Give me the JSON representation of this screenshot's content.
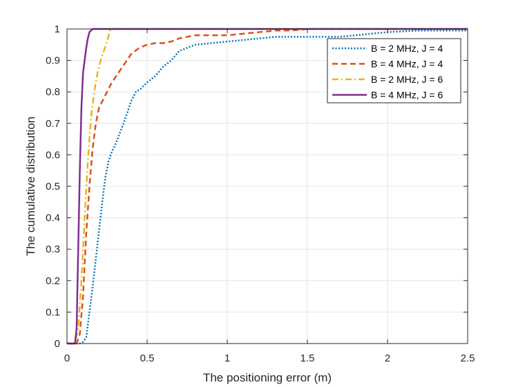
{
  "chart_data": {
    "type": "line",
    "title": "",
    "xlabel": "The positioning error (m)",
    "ylabel": "The cumulative distribution",
    "xlim": [
      0,
      2.5
    ],
    "ylim": [
      0,
      1
    ],
    "grid": true,
    "legend_position": "top-right",
    "x_ticks": [
      "0",
      "0.5",
      "1",
      "1.5",
      "2",
      "2.5"
    ],
    "y_ticks": [
      "0",
      "0.1",
      "0.2",
      "0.3",
      "0.4",
      "0.5",
      "0.6",
      "0.7",
      "0.8",
      "0.9",
      "1"
    ],
    "series": [
      {
        "name": "B = 2 MHz, J = 4",
        "color": "#0072BD",
        "style": "dotted",
        "x": [
          0,
          0.08,
          0.1,
          0.12,
          0.14,
          0.16,
          0.18,
          0.2,
          0.22,
          0.24,
          0.26,
          0.28,
          0.3,
          0.33,
          0.36,
          0.4,
          0.43,
          0.46,
          0.5,
          0.55,
          0.6,
          0.65,
          0.7,
          0.75,
          0.8,
          0.9,
          1.0,
          1.1,
          1.2,
          1.3,
          1.5,
          1.6,
          1.7,
          1.8,
          1.9,
          2.0,
          2.2,
          2.3,
          2.5
        ],
        "y": [
          0,
          0,
          0.005,
          0.02,
          0.1,
          0.18,
          0.27,
          0.36,
          0.45,
          0.53,
          0.58,
          0.61,
          0.63,
          0.67,
          0.71,
          0.77,
          0.8,
          0.81,
          0.83,
          0.85,
          0.88,
          0.9,
          0.93,
          0.94,
          0.95,
          0.955,
          0.96,
          0.965,
          0.97,
          0.975,
          0.975,
          0.975,
          0.975,
          0.98,
          0.985,
          0.99,
          0.995,
          0.995,
          0.995
        ]
      },
      {
        "name": "B = 4 MHz, J = 4",
        "color": "#D95319",
        "style": "dashed",
        "x": [
          0,
          0.06,
          0.08,
          0.1,
          0.12,
          0.14,
          0.16,
          0.18,
          0.2,
          0.22,
          0.25,
          0.28,
          0.32,
          0.36,
          0.4,
          0.45,
          0.5,
          0.55,
          0.6,
          0.65,
          0.7,
          0.8,
          0.9,
          1.0,
          1.1,
          1.2,
          1.3,
          1.4,
          1.5,
          1.6,
          2.0,
          2.5
        ],
        "y": [
          0,
          0,
          0.03,
          0.15,
          0.35,
          0.5,
          0.62,
          0.7,
          0.75,
          0.77,
          0.8,
          0.83,
          0.86,
          0.89,
          0.92,
          0.94,
          0.95,
          0.955,
          0.955,
          0.96,
          0.97,
          0.98,
          0.98,
          0.98,
          0.985,
          0.99,
          0.995,
          0.995,
          1.0,
          1.0,
          1.0,
          1.0
        ]
      },
      {
        "name": "B = 2 MHz, J = 6",
        "color": "#EDB120",
        "style": "dashdot",
        "x": [
          0,
          0.05,
          0.07,
          0.09,
          0.11,
          0.13,
          0.15,
          0.17,
          0.19,
          0.21,
          0.23,
          0.25,
          0.27,
          0.3,
          2.5
        ],
        "y": [
          0,
          0,
          0.05,
          0.2,
          0.4,
          0.58,
          0.72,
          0.8,
          0.86,
          0.9,
          0.93,
          0.96,
          1.0,
          1.0,
          1.0
        ]
      },
      {
        "name": "B = 4 MHz, J = 6",
        "color": "#7E2F8E",
        "style": "solid",
        "x": [
          0,
          0.05,
          0.06,
          0.07,
          0.08,
          0.09,
          0.1,
          0.11,
          0.12,
          0.13,
          0.14,
          0.16,
          2.5
        ],
        "y": [
          0,
          0,
          0.05,
          0.3,
          0.55,
          0.75,
          0.86,
          0.9,
          0.94,
          0.97,
          0.99,
          1.0,
          1.0
        ]
      }
    ]
  }
}
